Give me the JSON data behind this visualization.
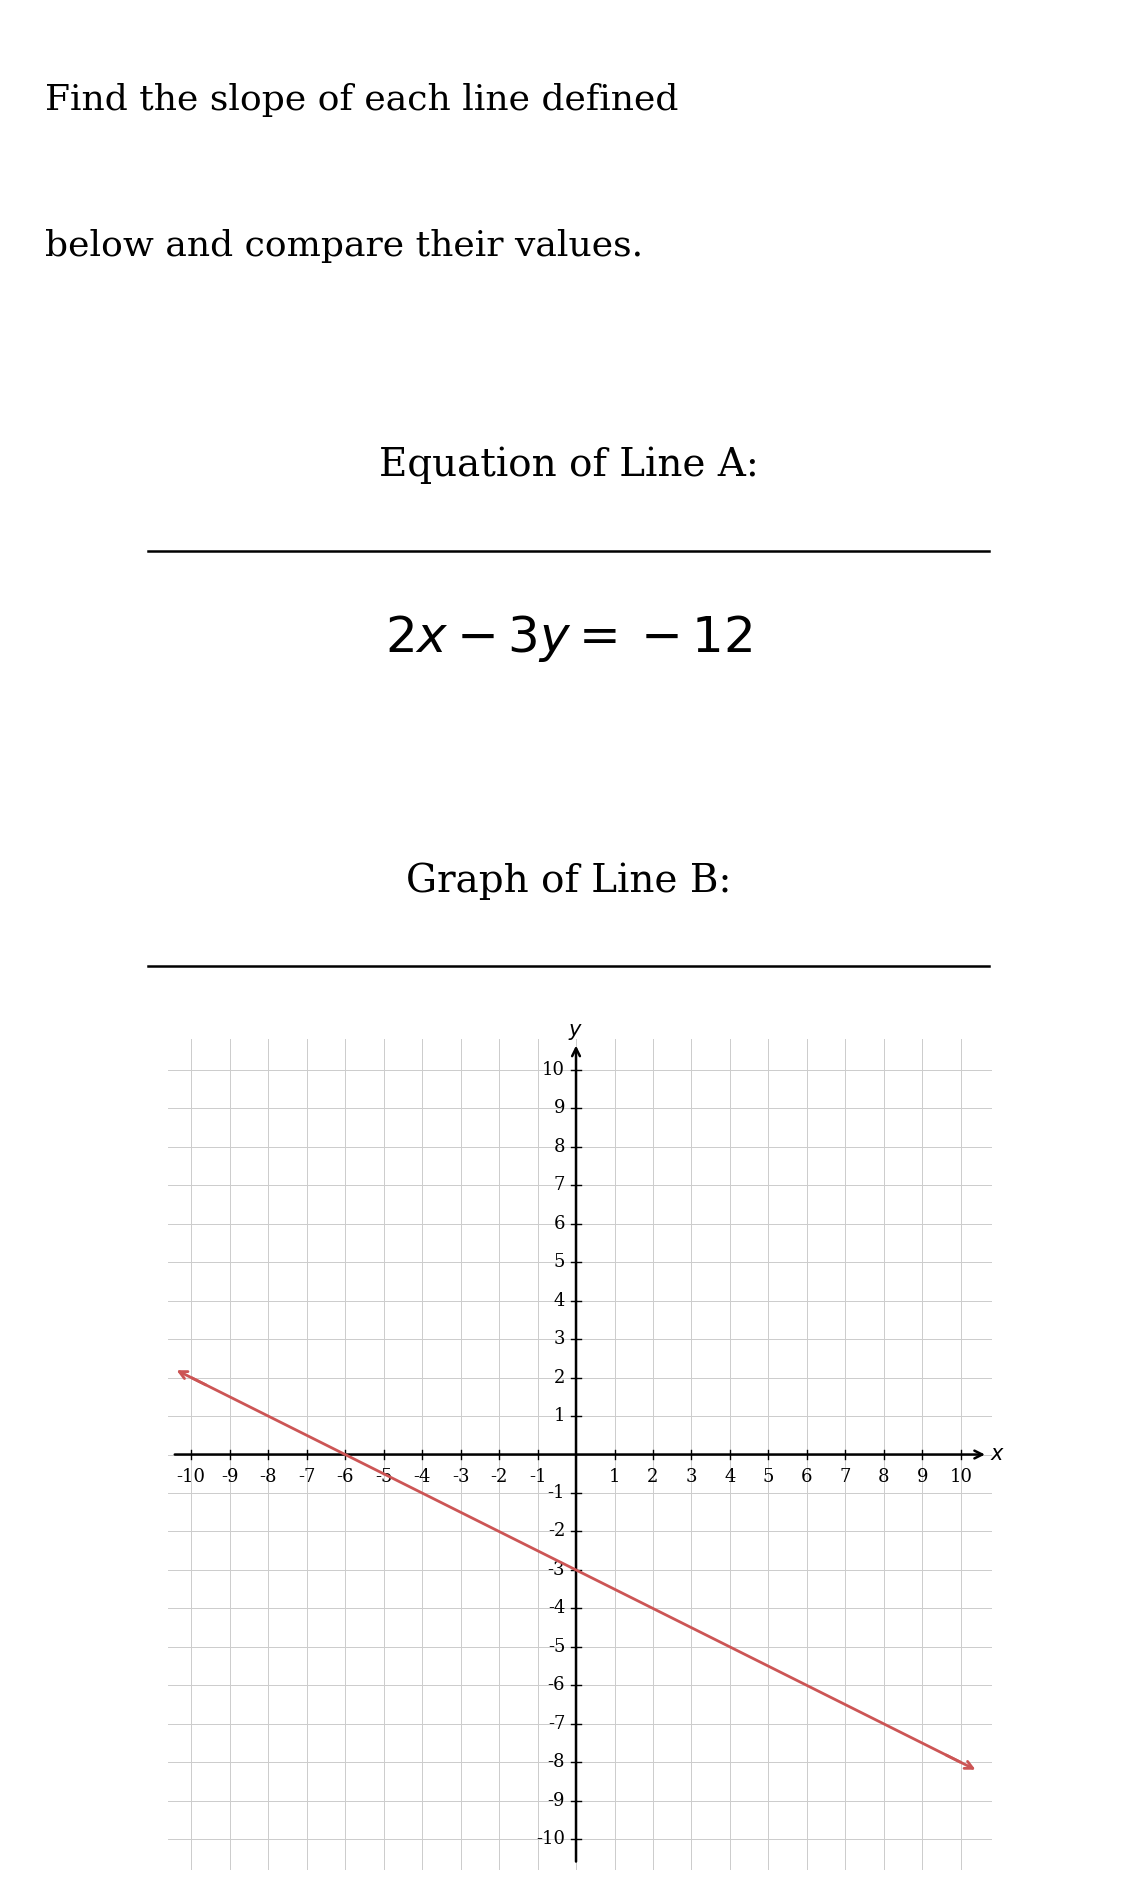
{
  "header_line1": "Find the slope of each line defined",
  "header_line2": "below and compare their values.",
  "section_a_title": "Equation of Line A:",
  "equation_latex": "$2x - 3y = -12$",
  "section_b_title": "Graph of Line B:",
  "line_b_slope": -0.5,
  "line_b_intercept": -3,
  "line_color": "#cc5555",
  "grid_color": "#cccccc",
  "grid_color_minor": "#dddddd",
  "axis_range": [
    -10,
    10
  ],
  "background_color": "#ffffff",
  "header_fontsize": 26,
  "section_title_fontsize": 28,
  "equation_fontsize": 36,
  "tick_fontsize": 13,
  "axis_label_fontsize": 15
}
